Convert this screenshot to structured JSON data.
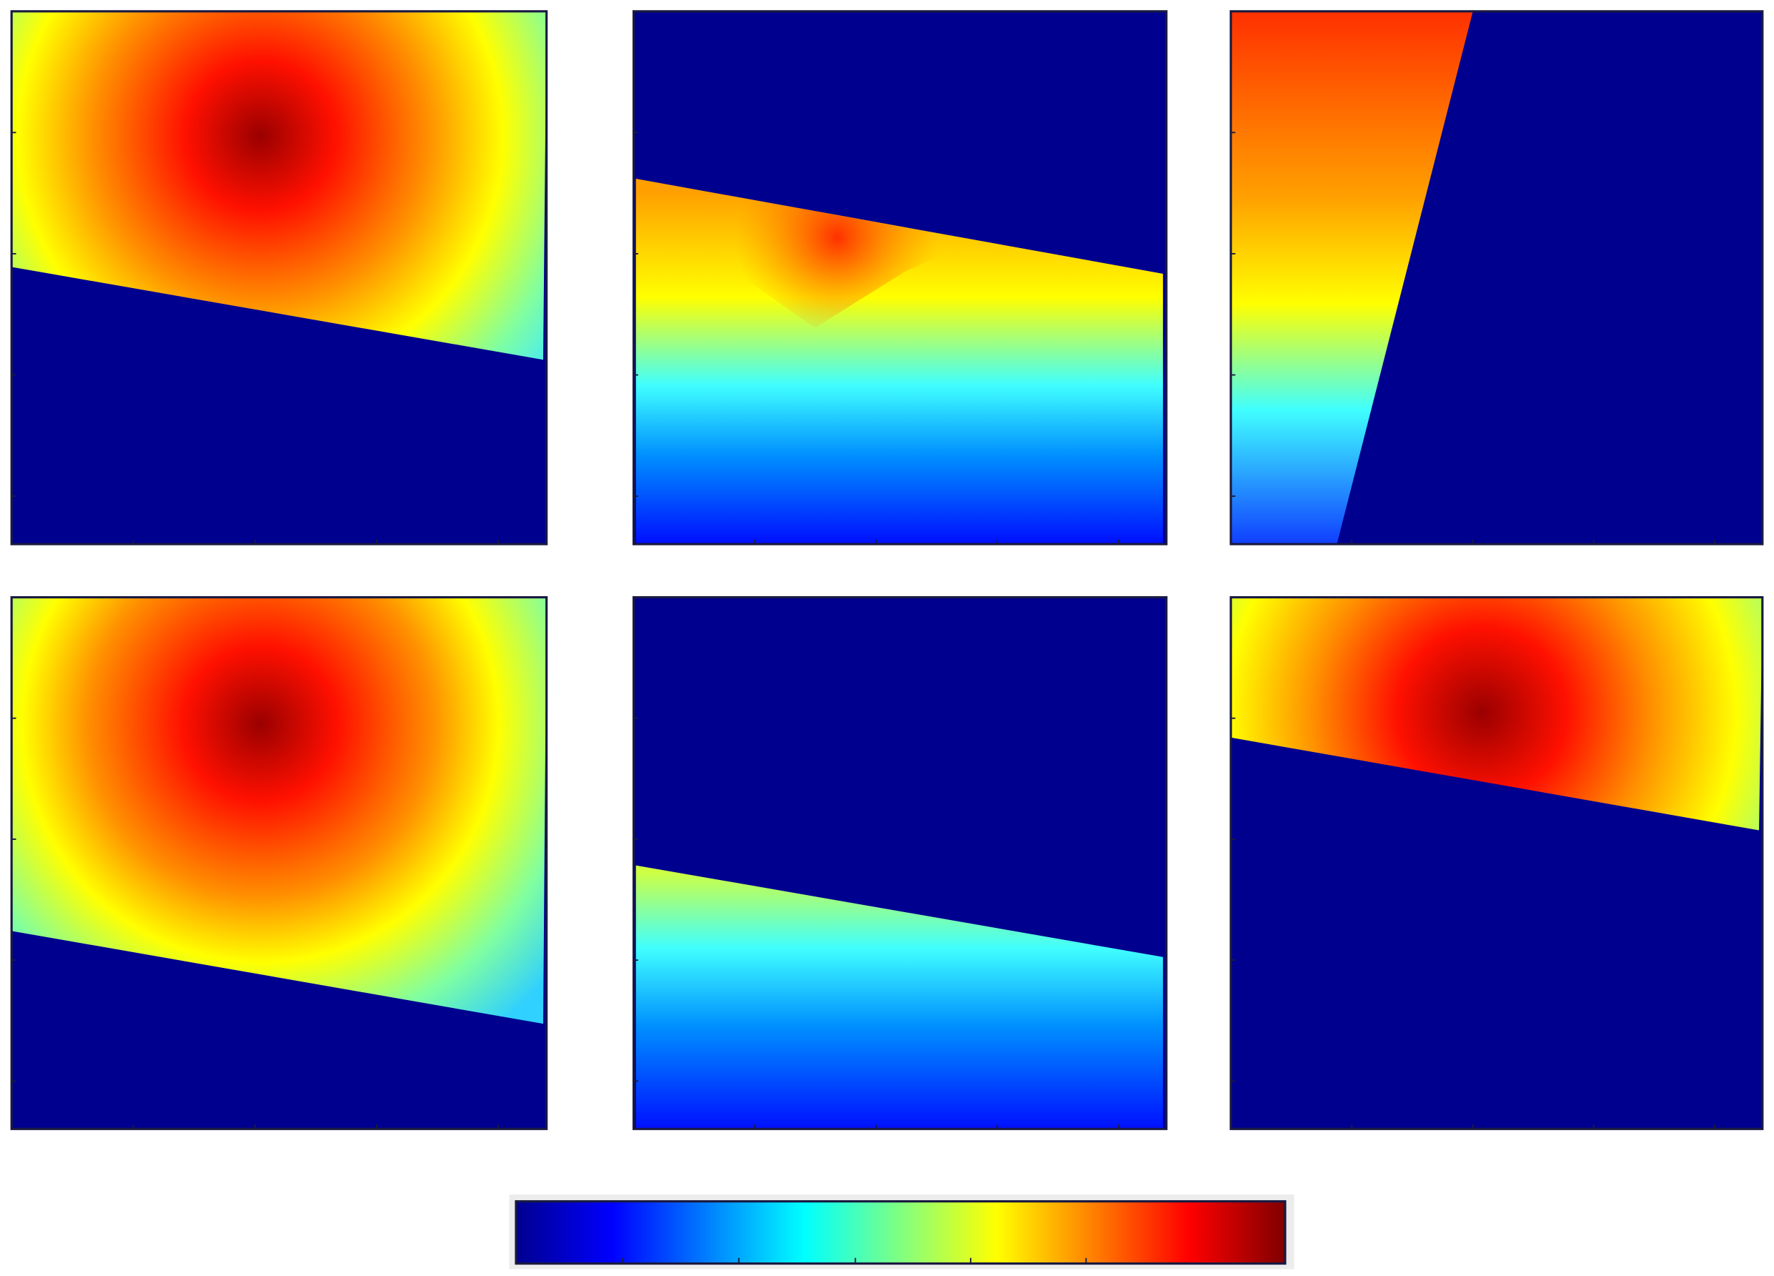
{
  "chart_data": {
    "type": "heatmap",
    "background": "#ffffff",
    "empty_color": "#00008f",
    "colormap": [
      "#00008f",
      "#0000ff",
      "#0080ff",
      "#00ffff",
      "#80ff80",
      "#ffff00",
      "#ff8000",
      "#ff0000",
      "#800000"
    ]
  }
}
